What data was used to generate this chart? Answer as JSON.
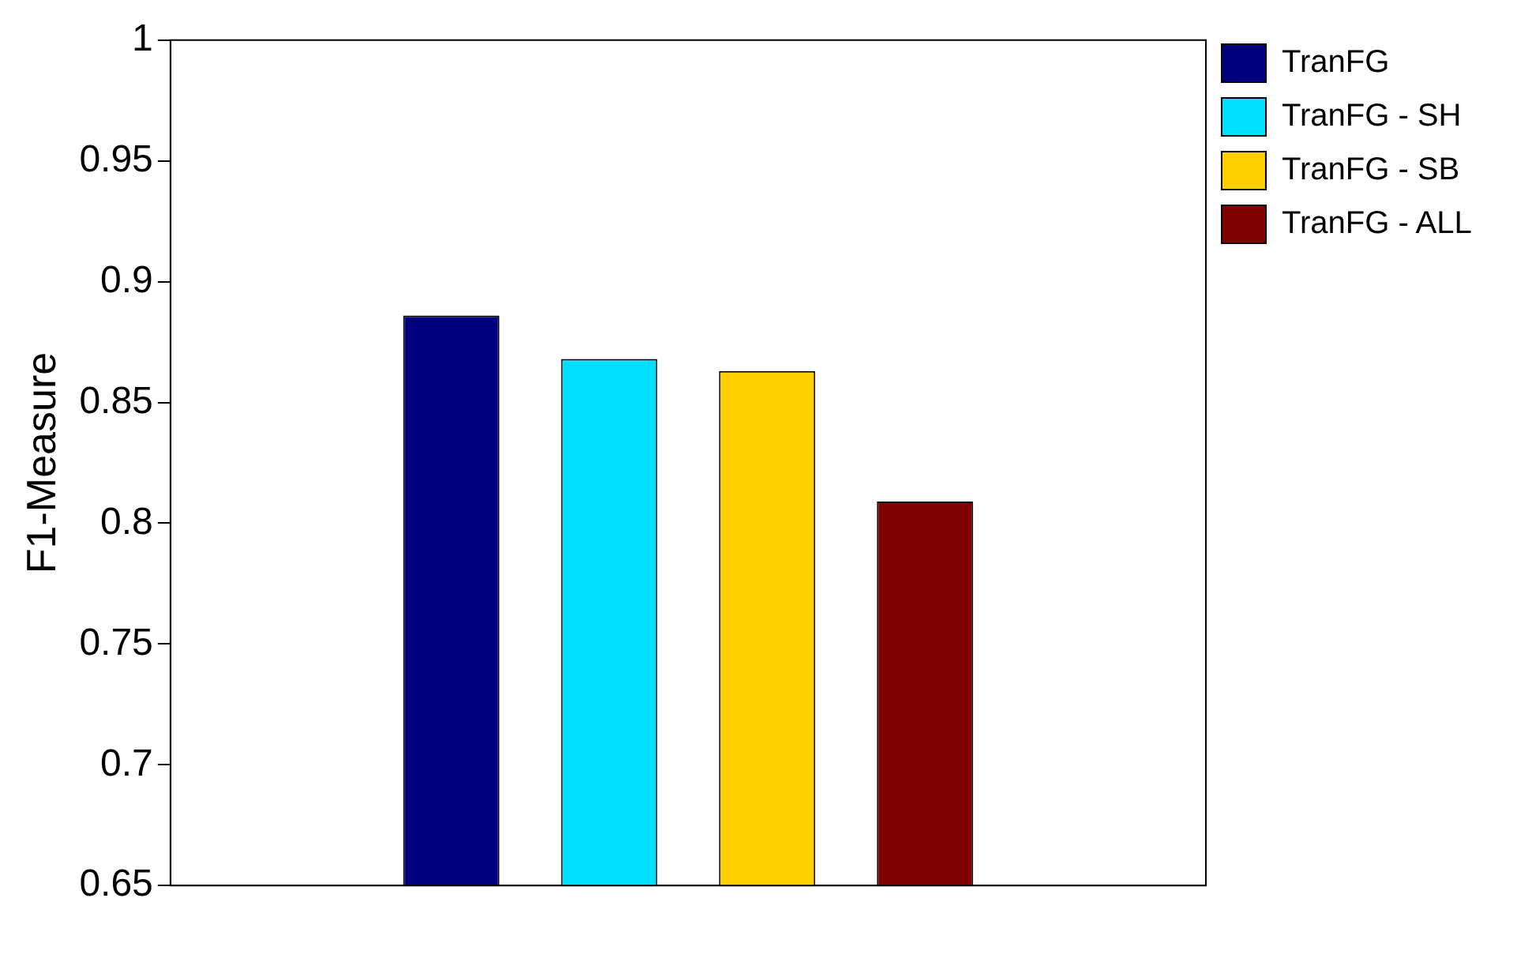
{
  "chart_data": {
    "type": "bar",
    "ylabel": "F1-Measure",
    "categories": [
      null
    ],
    "series": [
      {
        "name": "TranFG",
        "color": "#00007f",
        "values": [
          0.886
        ]
      },
      {
        "name": "TranFG - SH",
        "color": "#00dfff",
        "values": [
          0.868
        ]
      },
      {
        "name": "TranFG - SB",
        "color": "#ffcf00",
        "values": [
          0.863
        ]
      },
      {
        "name": "TranFG - ALL",
        "color": "#7f0000",
        "values": [
          0.809
        ]
      }
    ],
    "ylim": [
      0.65,
      1
    ],
    "yticks": [
      0.65,
      0.7,
      0.75,
      0.8,
      0.85,
      0.9,
      0.95,
      1
    ],
    "grid": false,
    "legend": "top right"
  }
}
